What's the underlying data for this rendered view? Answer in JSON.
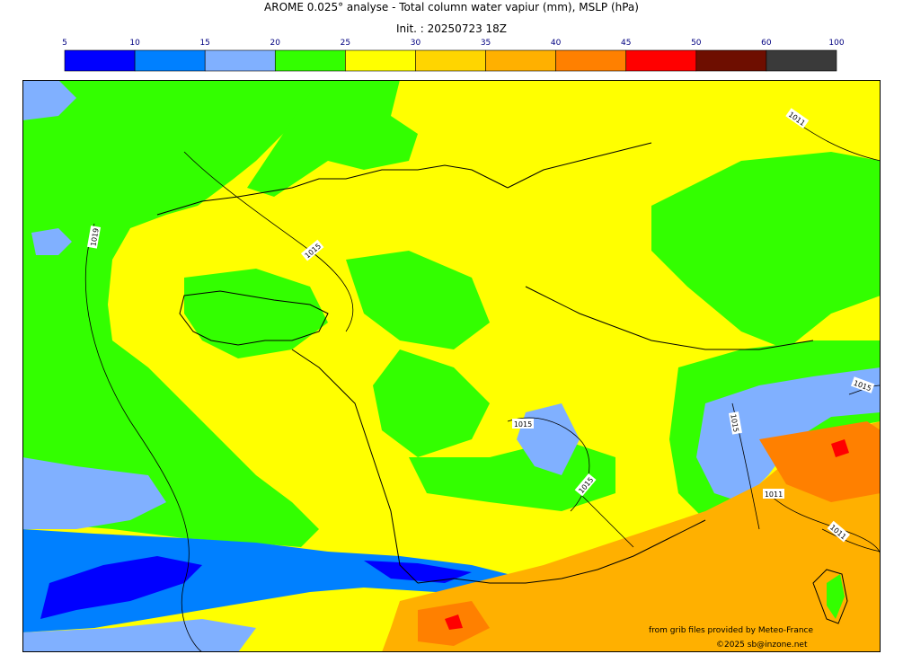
{
  "header": {
    "title": "AROME 0.025° analyse - Total column water vapiur (mm), MSLP (hPa)",
    "init": "Init. : 20250723 18Z"
  },
  "colorbar": {
    "ticks": [
      "5",
      "10",
      "15",
      "20",
      "25",
      "30",
      "35",
      "40",
      "45",
      "50",
      "60",
      "100"
    ],
    "colors": [
      "#0000ff",
      "#0080ff",
      "#80b0ff",
      "#33ff00",
      "#ffff00",
      "#ffd500",
      "#ffb000",
      "#ff8000",
      "#ff0000",
      "#6e0e00",
      "#3a3a3a"
    ]
  },
  "map": {
    "palette": {
      "land_base": "#ffff00",
      "sea_base": "#33ff00",
      "low": "#80b0ff",
      "very_low": "#0080ff",
      "deep_low": "#0000ff",
      "mid": "#ffd500",
      "high": "#ffb000",
      "higher": "#ff8000",
      "peak": "#ff0000"
    },
    "isobars": [
      "1019",
      "1015",
      "1015",
      "1015",
      "1015",
      "1015",
      "1011",
      "1011",
      "1011"
    ]
  },
  "credits": {
    "source": "from grib files provided by Meteo-France",
    "copyright": "©2025 sb@inzone.net"
  }
}
